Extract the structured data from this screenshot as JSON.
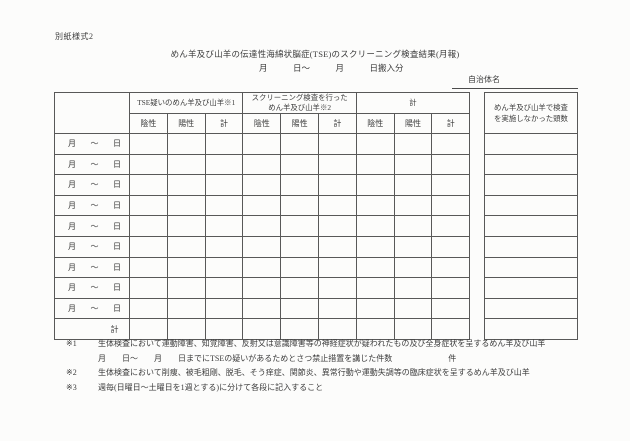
{
  "page": {
    "form_label": "別紙様式2",
    "title": "めん羊及び山羊の伝達性海綿状脳症(TSE)のスクリーニング検査結果(月報)",
    "period": "月　　　日～　　　月　　　日搬入分",
    "authority_label": "自治体名"
  },
  "table": {
    "groups": [
      "TSE疑いのめん羊及び山羊※1",
      "スクリーニング検査を行った\nめん羊及び山羊※2",
      "計"
    ],
    "sub_headers": [
      "陰性",
      "陽性",
      "計"
    ],
    "week_row": {
      "month": "月",
      "tilde": "～",
      "day": "日"
    },
    "week_row_count": 9,
    "total_label": "計"
  },
  "side_table": {
    "header": "めん羊及び山羊で検査\nを実施しなかった頭数"
  },
  "notes": [
    {
      "marker": "※1",
      "text": "生体検査において運動障害、知覚障害、反射又は意識障害等の神経症状が疑われたもの及び全身症状を呈するめん羊及び山羊"
    },
    {
      "marker": "",
      "text": "月　　日～　　月　　日までにTSEの疑いがあるためとさつ禁止措置を講じた件数　　　　　　　件"
    },
    {
      "marker": "※2",
      "text": "生体検査において削痩、被毛粗剛、脱毛、そう痒症、関節炎、異常行動や運動失調等の臨床症状を呈するめん羊及び山羊"
    },
    {
      "marker": "※3",
      "text": "週毎(日曜日～土曜日を1週とする)に分けて各段に記入すること"
    }
  ]
}
